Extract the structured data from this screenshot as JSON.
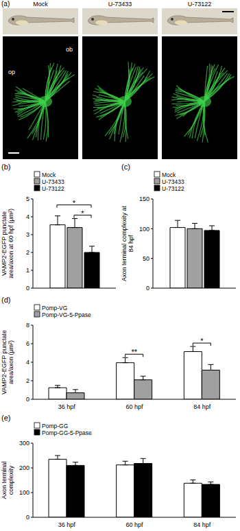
{
  "images": {
    "label": "(a)",
    "columns": [
      "Mock",
      "U-73433",
      "U-73122"
    ],
    "annotations": [
      "op",
      "ob"
    ]
  },
  "chart_data": [
    {
      "type": "bar",
      "label": "(b)",
      "y_label": "VAMP2-EGFP punctate area/axon at 60 hpf (μm²)",
      "categories": [
        null
      ],
      "series": [
        {
          "name": "Mock",
          "color": "#ffffff",
          "values": [
            3.55
          ],
          "errors": [
            0.5
          ]
        },
        {
          "name": "U-73433",
          "color": "#a0a0a0",
          "values": [
            3.4
          ],
          "errors": [
            0.5
          ]
        },
        {
          "name": "U-73122",
          "color": "#000000",
          "values": [
            2.0
          ],
          "errors": [
            0.35
          ]
        }
      ],
      "ylim": [
        0,
        5
      ],
      "yticks": [
        0,
        1,
        2,
        3,
        4,
        5
      ],
      "legend": "upper left",
      "tick_labels": "y",
      "annotations": [
        {
          "text": "*",
          "between": [
            "U-73433",
            "U-73122"
          ]
        },
        {
          "text": "*",
          "between": [
            "Mock",
            "U-73122"
          ]
        }
      ]
    },
    {
      "type": "bar",
      "label": "(c)",
      "y_label": "Axon terminal complexity at 84 hpf",
      "categories": [
        null
      ],
      "series": [
        {
          "name": "Mock",
          "color": "#ffffff",
          "values": [
            102
          ],
          "errors": [
            12
          ]
        },
        {
          "name": "U-73433",
          "color": "#a0a0a0",
          "values": [
            100
          ],
          "errors": [
            9
          ]
        },
        {
          "name": "U-73122",
          "color": "#000000",
          "values": [
            97
          ],
          "errors": [
            8
          ]
        }
      ],
      "ylim": [
        0,
        150
      ],
      "yticks": [
        0,
        50,
        100,
        150
      ],
      "legend": "upper left",
      "tick_labels": "y"
    },
    {
      "type": "bar",
      "label": "(d)",
      "y_label": "VAMP2-EGFP punctate area/axon (μm²)",
      "categories": [
        "36 hpf",
        "60 hpf",
        "84 hpf"
      ],
      "series": [
        {
          "name": "Pomp-VG",
          "color": "#ffffff",
          "values": [
            1.25,
            3.95,
            5.15
          ],
          "errors": [
            0.25,
            0.55,
            0.55
          ]
        },
        {
          "name": "Pomp-VG-5-Ppase",
          "color": "#a0a0a0",
          "values": [
            0.7,
            2.1,
            3.15
          ],
          "errors": [
            0.35,
            0.4,
            0.6
          ]
        }
      ],
      "ylim": [
        0,
        8
      ],
      "yticks": [
        0,
        2,
        4,
        6,
        8
      ],
      "legend": "upper left",
      "annotations": [
        {
          "text": "**",
          "between": [
            "Pomp-VG",
            "Pomp-VG-5-Ppase"
          ],
          "category": "60 hpf"
        },
        {
          "text": "*",
          "between": [
            "Pomp-VG",
            "Pomp-VG-5-Ppase"
          ],
          "category": "84 hpf"
        }
      ]
    },
    {
      "type": "bar",
      "label": "(e)",
      "y_label": "Axon terminal complexity",
      "categories": [
        "36 hpf",
        "60 hpf",
        "84 hpf"
      ],
      "series": [
        {
          "name": "Pomp-GG",
          "color": "#ffffff",
          "values": [
            235,
            212,
            138
          ],
          "errors": [
            15,
            15,
            13
          ]
        },
        {
          "name": "Pomp-GG-5-Ppase",
          "color": "#000000",
          "values": [
            210,
            218,
            133
          ],
          "errors": [
            13,
            20,
            10
          ]
        }
      ],
      "ylim": [
        0,
        300
      ],
      "yticks": [
        0,
        100,
        200,
        300
      ],
      "legend": "upper left"
    }
  ]
}
